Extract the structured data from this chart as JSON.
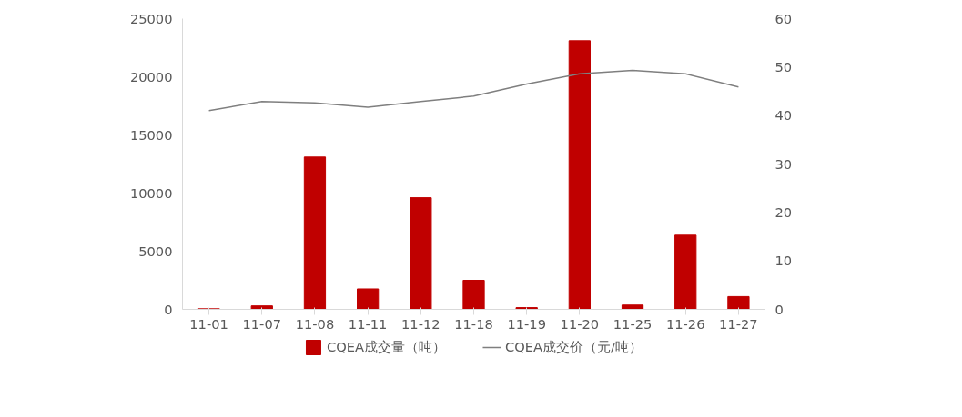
{
  "chart_data": {
    "type": "bar",
    "categories": [
      "11-01",
      "11-07",
      "11-08",
      "11-11",
      "11-12",
      "11-18",
      "11-19",
      "11-20",
      "11-25",
      "11-26",
      "11-27"
    ],
    "series": [
      {
        "name": "CQEA成交量（吨）",
        "color": "#c00000",
        "values": [
          50,
          300,
          13100,
          1760,
          9600,
          2500,
          150,
          23100,
          370,
          6380,
          1100
        ]
      },
      {
        "name": "CQEA成交价（元/吨）",
        "type": "line",
        "axis": "y2",
        "color": "#7f7f7f",
        "values": [
          41.0,
          42.9,
          42.6,
          41.7,
          42.9,
          44.0,
          46.5,
          48.6,
          49.3,
          48.6,
          45.9
        ]
      }
    ],
    "ylim": [
      0,
      25000
    ],
    "yticks": [
      0,
      5000,
      10000,
      15000,
      20000,
      25000
    ],
    "y2lim": [
      0,
      60
    ],
    "y2ticks": [
      0,
      10,
      20,
      30,
      40,
      50,
      60
    ],
    "grid": false,
    "legend": "bottom"
  }
}
